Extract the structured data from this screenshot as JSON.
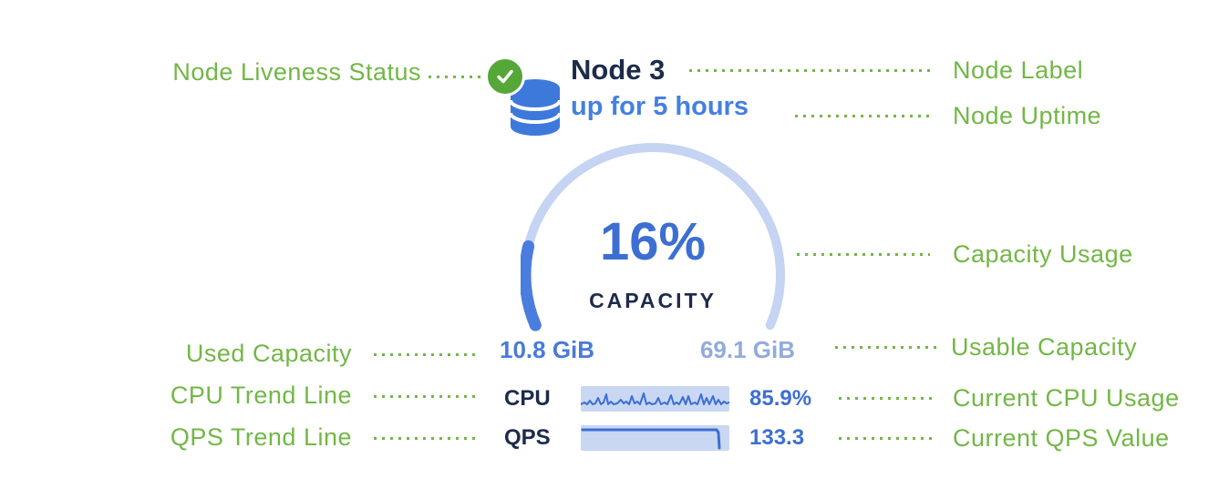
{
  "node": {
    "label": "Node 3",
    "uptime": "up for 5 hours",
    "capacity_caption": "CAPACITY",
    "used_capacity": "10.8 GiB",
    "usable_capacity": "69.1 GiB",
    "cpu_label": "CPU",
    "cpu_value": "85.9%",
    "qps_label": "QPS",
    "qps_value": "133.3"
  },
  "gauge": {
    "percent": 16,
    "percent_text": "16%"
  },
  "annotations": {
    "left": [
      {
        "label": "Node Liveness Status"
      },
      {
        "label": "Used Capacity"
      },
      {
        "label": "CPU Trend Line"
      },
      {
        "label": "QPS Trend Line"
      }
    ],
    "right": [
      {
        "label": "Node Label"
      },
      {
        "label": "Node Uptime"
      },
      {
        "label": "Capacity Usage"
      },
      {
        "label": "Usable Capacity"
      },
      {
        "label": "Current CPU Usage"
      },
      {
        "label": "Current QPS Value"
      }
    ]
  },
  "icons": {
    "liveness": "check-circle",
    "node": "database"
  },
  "colors": {
    "annotation_green": "#72b746",
    "liveness_green": "#55a738",
    "navy_text": "#1c2b4a",
    "primary_blue": "#3d6fd2",
    "uptime_blue": "#4580e0",
    "used_capacity_blue": "#4a7ad9",
    "usable_capacity_blue": "#93aadd",
    "gauge_track": "#c4d4f2",
    "gauge_fill": "#4b7ce0",
    "sparkline_bg": "#c9d7f2",
    "sparkline_line": "#3b6fd6"
  },
  "chart_data": {
    "type": "line",
    "note": "sparkline shapes (box coords 163x28, y inverted)",
    "cpu_sparkline_points": [
      [
        0,
        20
      ],
      [
        4,
        18
      ],
      [
        7,
        20
      ],
      [
        10,
        16
      ],
      [
        13,
        20
      ],
      [
        16,
        19
      ],
      [
        19,
        13
      ],
      [
        22,
        20
      ],
      [
        25,
        18
      ],
      [
        28,
        9
      ],
      [
        30,
        20
      ],
      [
        33,
        17
      ],
      [
        36,
        20
      ],
      [
        40,
        19
      ],
      [
        44,
        15
      ],
      [
        47,
        19
      ],
      [
        50,
        17
      ],
      [
        53,
        20
      ],
      [
        56,
        11
      ],
      [
        59,
        19
      ],
      [
        62,
        17
      ],
      [
        65,
        20
      ],
      [
        69,
        8
      ],
      [
        72,
        20
      ],
      [
        75,
        18
      ],
      [
        78,
        20
      ],
      [
        82,
        19
      ],
      [
        85,
        13
      ],
      [
        88,
        20
      ],
      [
        92,
        18
      ],
      [
        95,
        20
      ],
      [
        99,
        10
      ],
      [
        102,
        20
      ],
      [
        105,
        18
      ],
      [
        108,
        20
      ],
      [
        112,
        12
      ],
      [
        115,
        20
      ],
      [
        118,
        11
      ],
      [
        121,
        20
      ],
      [
        125,
        18
      ],
      [
        128,
        20
      ],
      [
        132,
        9
      ],
      [
        135,
        20
      ],
      [
        138,
        13
      ],
      [
        141,
        20
      ],
      [
        145,
        11
      ],
      [
        148,
        20
      ],
      [
        151,
        15
      ],
      [
        154,
        20
      ],
      [
        157,
        17
      ],
      [
        160,
        19
      ],
      [
        163,
        18
      ]
    ],
    "qps_sparkline_points": [
      [
        2,
        5
      ],
      [
        149,
        5
      ],
      [
        151,
        8
      ],
      [
        152,
        25
      ]
    ]
  }
}
